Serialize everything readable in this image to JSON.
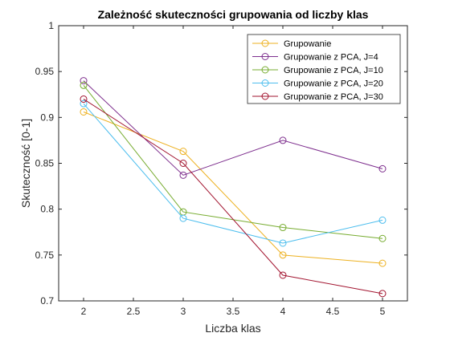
{
  "chart_data": {
    "type": "line",
    "title": "Zależność skuteczności grupowania od liczby klas",
    "xlabel": "Liczba klas",
    "ylabel": "Skuteczność [0-1]",
    "xlim": [
      1.75,
      5.25
    ],
    "ylim": [
      0.7,
      1.0
    ],
    "xticks": [
      "2",
      "2.5",
      "3",
      "3.5",
      "4",
      "4.5",
      "5"
    ],
    "yticks": [
      "0.7",
      "0.75",
      "0.8",
      "0.85",
      "0.9",
      "0.95",
      "1"
    ],
    "xtick_values": [
      2,
      2.5,
      3,
      3.5,
      4,
      4.5,
      5
    ],
    "ytick_values": [
      0.7,
      0.75,
      0.8,
      0.85,
      0.9,
      0.95,
      1.0
    ],
    "grid": false,
    "legend_position": "top-right",
    "x": [
      2,
      3,
      4,
      5
    ],
    "series": [
      {
        "name": "Grupowanie",
        "color": "#EDB120",
        "values": [
          0.906,
          0.863,
          0.75,
          0.741
        ]
      },
      {
        "name": "Grupowanie z PCA, J=4",
        "color": "#7E2F8E",
        "values": [
          0.94,
          0.837,
          0.875,
          0.844
        ]
      },
      {
        "name": "Grupowanie z PCA, J=10",
        "color": "#77AC30",
        "values": [
          0.935,
          0.797,
          0.78,
          0.768
        ]
      },
      {
        "name": "Grupowanie z PCA, J=20",
        "color": "#4DBEEE",
        "values": [
          0.915,
          0.79,
          0.763,
          0.788
        ]
      },
      {
        "name": "Grupowanie z PCA, J=30",
        "color": "#A2142F",
        "values": [
          0.92,
          0.85,
          0.728,
          0.708
        ]
      }
    ]
  }
}
